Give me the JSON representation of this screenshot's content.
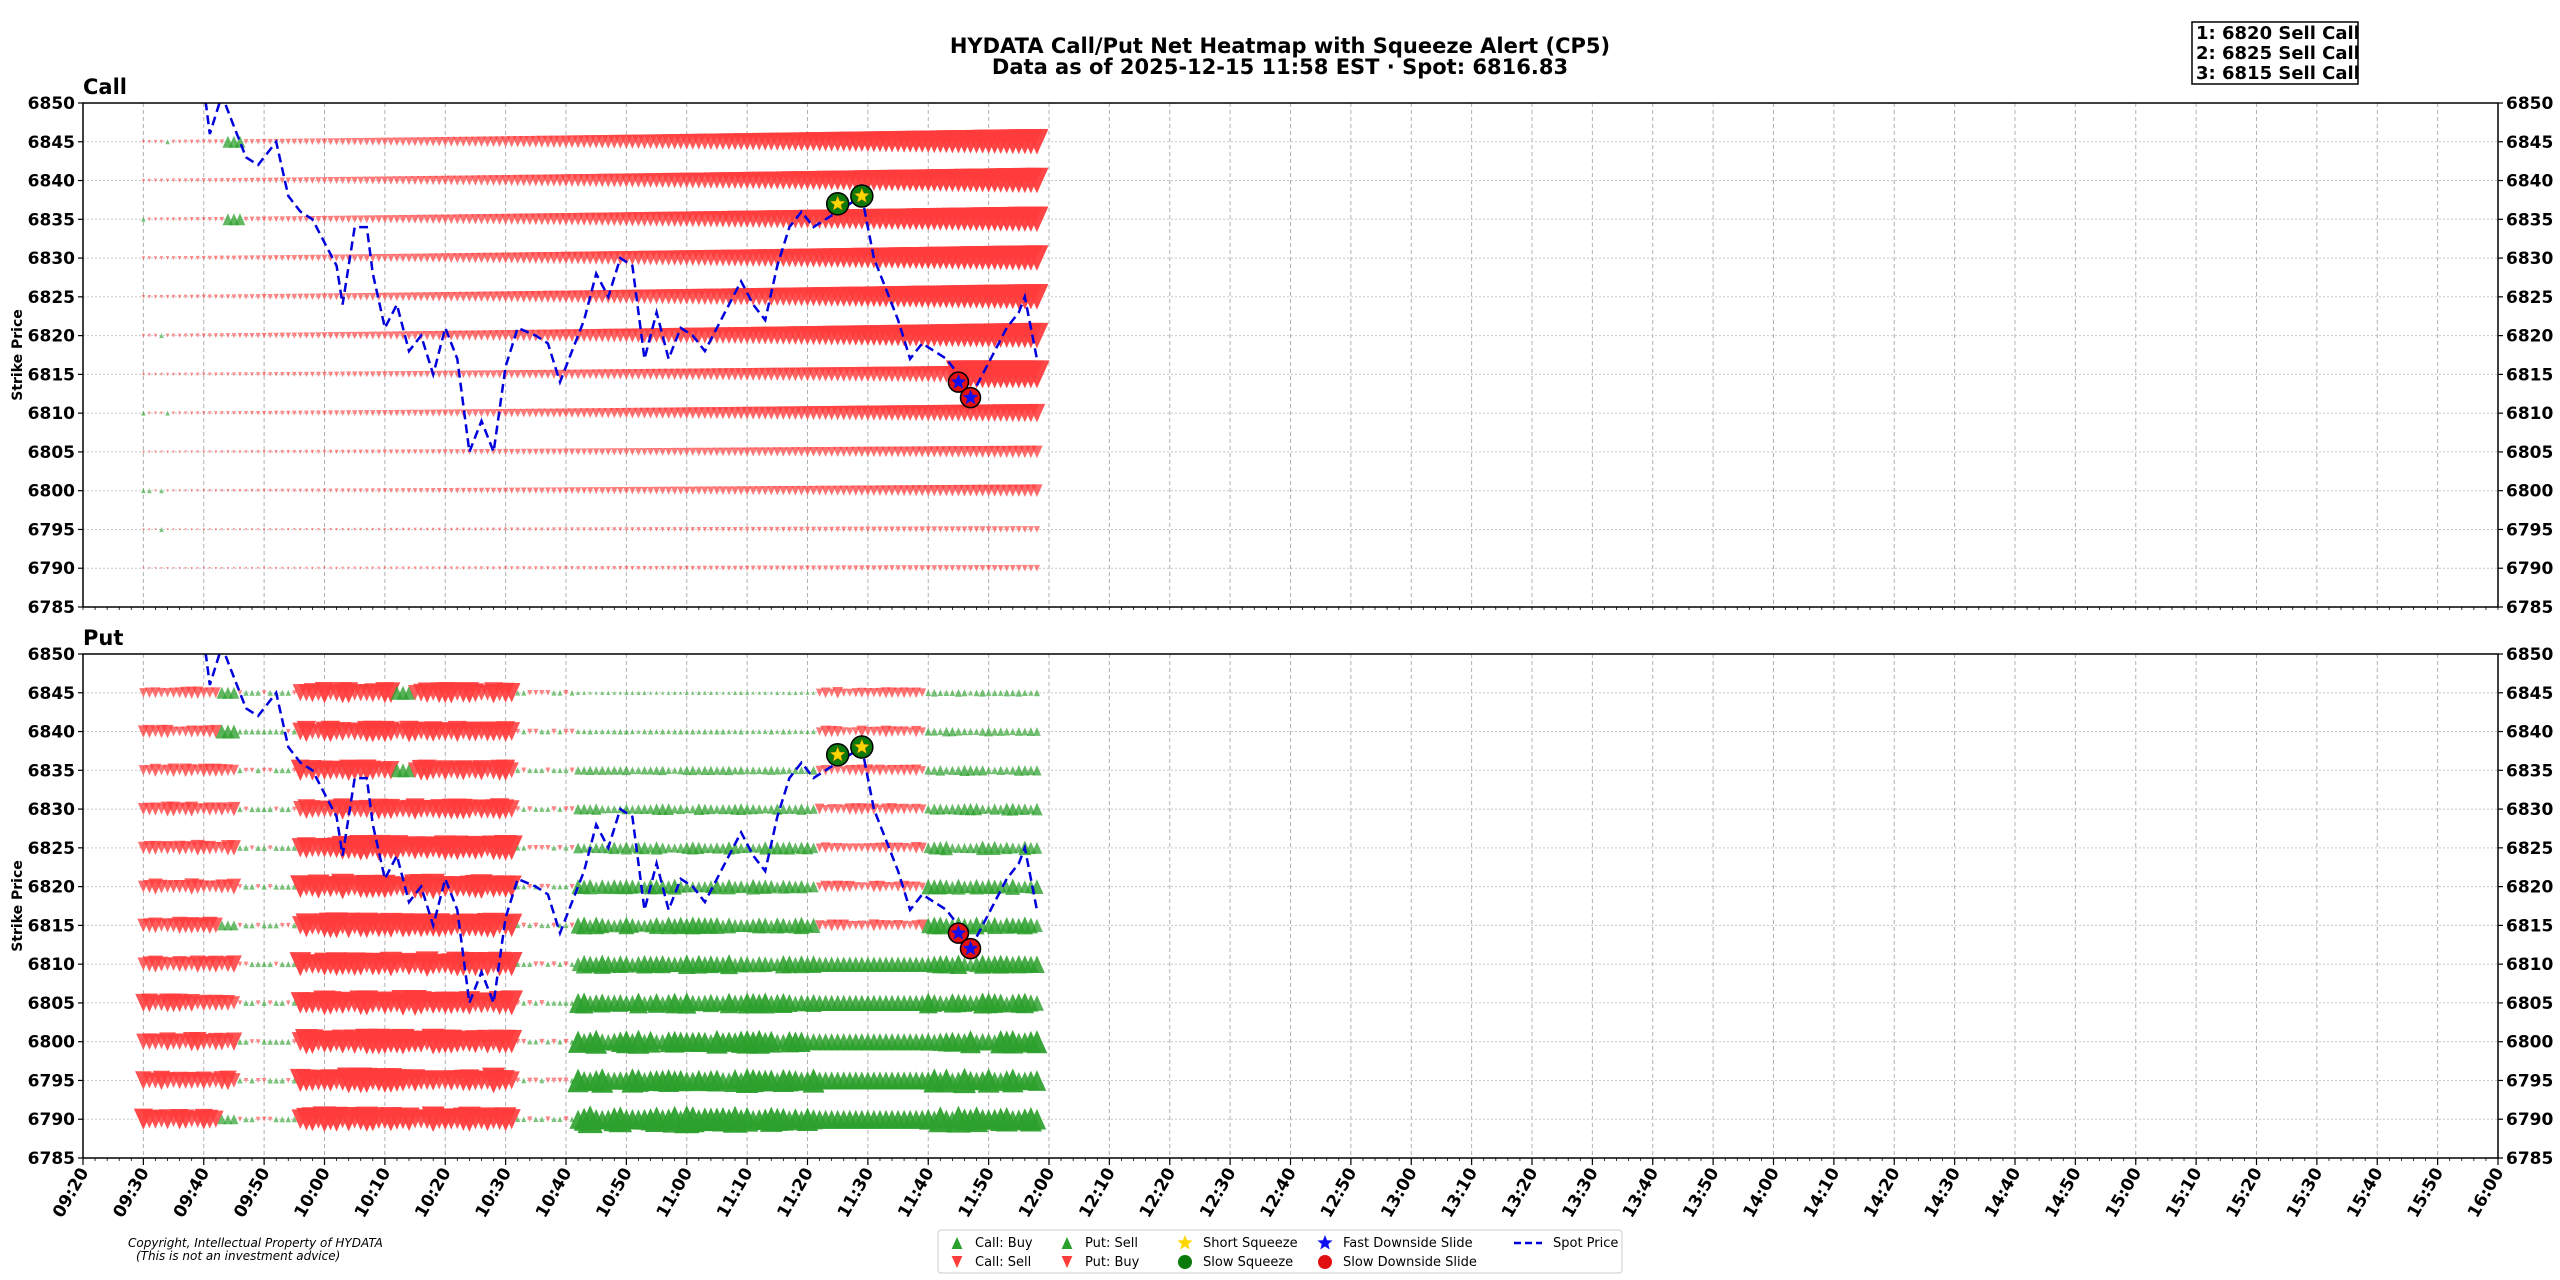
{
  "title_line1": "HYDATA Call/Put Net Heatmap with Squeeze Alert (CP5)",
  "title_line2": "Data as of 2025-12-15 11:58 EST · Spot: 6816.83",
  "alerts": [
    "1: 6820 Sell Call",
    "2: 6825 Sell Call",
    "3: 6815 Sell Call"
  ],
  "copyright": [
    "Copyright, Intellectual Property of HYDATA",
    "(This is not an investment advice)"
  ],
  "colors": {
    "buy": "#2ca02c",
    "sell": "#ff3b3b",
    "spot": "#0000dd",
    "squeeze_fill": "#0a7a0a",
    "squeeze_star": "#ffd700",
    "slide_fill": "#e01010",
    "slide_star": "#1010ee"
  },
  "legend": [
    {
      "label": "Call: Buy",
      "marker": "up-triangle-green"
    },
    {
      "label": "Call: Sell",
      "marker": "down-triangle-red"
    },
    {
      "label": "Put: Sell",
      "marker": "up-triangle-green"
    },
    {
      "label": "Put: Buy",
      "marker": "down-triangle-red"
    },
    {
      "label": "Short Squeeze",
      "marker": "gold-star"
    },
    {
      "label": "Slow Squeeze",
      "marker": "green-circle"
    },
    {
      "label": "Fast Downside Slide",
      "marker": "blue-star"
    },
    {
      "label": "Slow Downside Slide",
      "marker": "red-circle"
    },
    {
      "label": "Spot Price",
      "marker": "dashed-blue-line"
    }
  ],
  "chart_data": {
    "type": "heatmap",
    "xlim": [
      "09:20",
      "16:00"
    ],
    "x_ticks": [
      "09:20",
      "09:30",
      "09:40",
      "09:50",
      "10:00",
      "10:10",
      "10:20",
      "10:30",
      "10:40",
      "10:50",
      "11:00",
      "11:10",
      "11:20",
      "11:30",
      "11:40",
      "11:50",
      "12:00",
      "12:10",
      "12:20",
      "12:30",
      "12:40",
      "12:50",
      "13:00",
      "13:10",
      "13:20",
      "13:30",
      "13:40",
      "13:50",
      "14:00",
      "14:10",
      "14:20",
      "14:30",
      "14:40",
      "14:50",
      "15:00",
      "15:10",
      "15:20",
      "15:30",
      "15:40",
      "15:50",
      "16:00"
    ],
    "ylim": [
      6785,
      6850
    ],
    "y_ticks": [
      6785,
      6790,
      6795,
      6800,
      6805,
      6810,
      6815,
      6820,
      6825,
      6830,
      6835,
      6840,
      6845,
      6850
    ],
    "ylabel": "Strike Price",
    "strikes": [
      6845,
      6840,
      6835,
      6830,
      6825,
      6820,
      6815,
      6810,
      6805,
      6800,
      6795,
      6790
    ],
    "panels": [
      "Call",
      "Put"
    ],
    "spot_series": [
      [
        "09:40",
        6852
      ],
      [
        "09:41",
        6846
      ],
      [
        "09:43",
        6851
      ],
      [
        "09:45",
        6847
      ],
      [
        "09:47",
        6843
      ],
      [
        "09:49",
        6842
      ],
      [
        "09:52",
        6845
      ],
      [
        "09:54",
        6838
      ],
      [
        "09:56",
        6836
      ],
      [
        "09:58",
        6835
      ],
      [
        "10:00",
        6832
      ],
      [
        "10:02",
        6829
      ],
      [
        "10:03",
        6824
      ],
      [
        "10:05",
        6834
      ],
      [
        "10:07",
        6834
      ],
      [
        "10:08",
        6828
      ],
      [
        "10:10",
        6821
      ],
      [
        "10:12",
        6824
      ],
      [
        "10:14",
        6818
      ],
      [
        "10:16",
        6820
      ],
      [
        "10:18",
        6815
      ],
      [
        "10:20",
        6821
      ],
      [
        "10:22",
        6817
      ],
      [
        "10:24",
        6805
      ],
      [
        "10:26",
        6809
      ],
      [
        "10:28",
        6805
      ],
      [
        "10:30",
        6816
      ],
      [
        "10:32",
        6821
      ],
      [
        "10:35",
        6820
      ],
      [
        "10:37",
        6819
      ],
      [
        "10:39",
        6814
      ],
      [
        "10:41",
        6818
      ],
      [
        "10:43",
        6822
      ],
      [
        "10:45",
        6828
      ],
      [
        "10:47",
        6825
      ],
      [
        "10:49",
        6830
      ],
      [
        "10:51",
        6829
      ],
      [
        "10:53",
        6817
      ],
      [
        "10:55",
        6823
      ],
      [
        "10:57",
        6817
      ],
      [
        "10:59",
        6821
      ],
      [
        "11:01",
        6820
      ],
      [
        "11:03",
        6818
      ],
      [
        "11:05",
        6821
      ],
      [
        "11:07",
        6824
      ],
      [
        "11:09",
        6827
      ],
      [
        "11:11",
        6824
      ],
      [
        "11:13",
        6822
      ],
      [
        "11:15",
        6829
      ],
      [
        "11:17",
        6834
      ],
      [
        "11:19",
        6836
      ],
      [
        "11:21",
        6834
      ],
      [
        "11:23",
        6835
      ],
      [
        "11:25",
        6836
      ],
      [
        "11:27",
        6837
      ],
      [
        "11:29",
        6838
      ],
      [
        "11:31",
        6830
      ],
      [
        "11:33",
        6826
      ],
      [
        "11:35",
        6822
      ],
      [
        "11:37",
        6817
      ],
      [
        "11:39",
        6819
      ],
      [
        "11:41",
        6818
      ],
      [
        "11:43",
        6817
      ],
      [
        "11:45",
        6815
      ],
      [
        "11:47",
        6812
      ],
      [
        "11:49",
        6815
      ],
      [
        "11:51",
        6818
      ],
      [
        "11:53",
        6821
      ],
      [
        "11:55",
        6823
      ],
      [
        "11:56",
        6825
      ],
      [
        "11:57",
        6821
      ],
      [
        "11:58",
        6817
      ]
    ],
    "squeeze_alerts": [
      [
        "11:25",
        6837
      ],
      [
        "11:29",
        6838
      ]
    ],
    "slide_alerts": [
      [
        "11:45",
        6814
      ],
      [
        "11:47",
        6812
      ]
    ]
  }
}
